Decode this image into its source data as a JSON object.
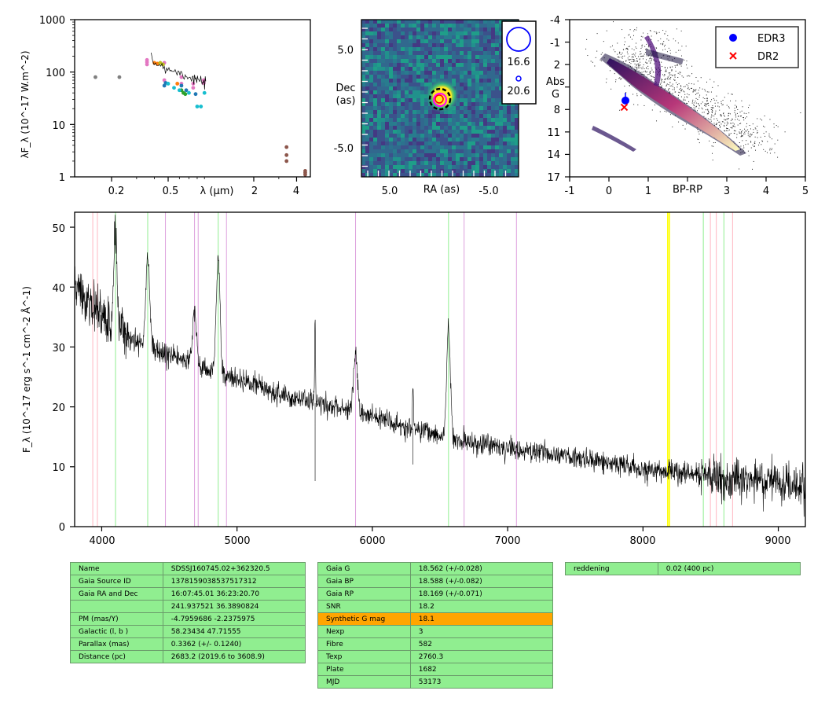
{
  "sed": {
    "ylabel": "λF_λ (10^-17 W.m^-2)",
    "xlabel": "λ (μm)",
    "ytick_labels": [
      "1000",
      "100",
      "10",
      "1"
    ],
    "xtick_labels": [
      "0.2",
      "0.5",
      "2",
      "4"
    ],
    "chart_data": {
      "type": "scatter",
      "x_scale": "log",
      "y_scale": "log",
      "xlim": [
        0.11,
        5.0
      ],
      "ylim": [
        1,
        1000
      ],
      "series": [
        {
          "color": "#7f7f7f",
          "x": [
            0.154,
            0.227
          ],
          "y": [
            80,
            80
          ]
        },
        {
          "color": "#e377c2",
          "x": [
            0.355,
            0.355,
            0.355,
            0.47,
            0.47,
            0.62,
            0.62,
            0.75,
            0.75,
            0.89,
            0.89
          ],
          "y": [
            170,
            155,
            140,
            150,
            70,
            80,
            60,
            60,
            50,
            70,
            62
          ]
        },
        {
          "color": "#ff7f0e",
          "x": [
            0.4,
            0.42,
            0.58
          ],
          "y": [
            150,
            145,
            60
          ]
        },
        {
          "color": "#bcbd22",
          "x": [
            0.44,
            0.46
          ],
          "y": [
            150,
            140
          ]
        },
        {
          "color": "#1f77b4",
          "x": [
            0.47,
            0.48,
            0.62,
            0.67,
            0.78
          ],
          "y": [
            55,
            62,
            55,
            45,
            38
          ]
        },
        {
          "color": "#2ca02c",
          "x": [
            0.62,
            0.64,
            0.66
          ],
          "y": [
            45,
            40,
            38
          ]
        },
        {
          "color": "#17becf",
          "x": [
            0.5,
            0.55,
            0.6,
            0.7,
            0.8,
            0.85,
            0.9
          ],
          "y": [
            60,
            50,
            45,
            40,
            22,
            22,
            40
          ]
        },
        {
          "color": "#8c564b",
          "x": [
            3.4,
            3.4,
            3.4,
            4.6,
            4.6,
            4.6
          ],
          "y": [
            3.7,
            2.6,
            2.0,
            1.3,
            1.2,
            1.1
          ]
        }
      ]
    }
  },
  "image": {
    "ylabel_1": "Dec",
    "ylabel_2": "(as)",
    "xlabel": "RA (as)",
    "xtick_labels": [
      "5.0",
      "-5.0"
    ],
    "ytick_labels": [
      "5.0",
      "-5.0"
    ],
    "legend_mag_1": "16.6",
    "legend_mag_2": "20.6"
  },
  "hrd": {
    "xlabel": "BP-RP",
    "ylabel_1": "Abs",
    "ylabel_2": "G",
    "xtick_labels": [
      "-1",
      "0",
      "1",
      "3",
      "4",
      "5"
    ],
    "ytick_labels": [
      "-4",
      "-1",
      "2",
      "5",
      "8",
      "11",
      "14",
      "17"
    ],
    "legend": [
      {
        "label": "EDR3",
        "color": "#0000ff",
        "marker": "circle"
      },
      {
        "label": "DR2",
        "color": "#ff0000",
        "marker": "x"
      }
    ],
    "chart_data": {
      "type": "scatter",
      "xlim": [
        -1,
        5
      ],
      "ylim": [
        17,
        -4
      ],
      "series": [
        {
          "name": "EDR3",
          "x": [
            0.42
          ],
          "y": [
            6.8
          ]
        },
        {
          "name": "DR2",
          "x": [
            0.39
          ],
          "y": [
            7.7
          ]
        }
      ]
    }
  },
  "spectrum": {
    "ylabel": "F_λ (10^-17 erg s^-1 cm^-2 Å^-1)",
    "ytick_labels": [
      "0",
      "10",
      "20",
      "30",
      "40",
      "50"
    ],
    "xtick_labels": [
      "4000",
      "5000",
      "6000",
      "7000",
      "8000",
      "9000"
    ],
    "chart_data": {
      "type": "line",
      "xlim": [
        3800,
        9200
      ],
      "ylim": [
        0,
        52.5
      ],
      "continuum": {
        "x": [
          3800,
          3900,
          4000,
          4200,
          4400,
          4600,
          4800,
          5000,
          5400,
          5800,
          6200,
          6600,
          7000,
          7500,
          8000,
          8500,
          9000,
          9200
        ],
        "y": [
          40.5,
          38,
          35,
          31.5,
          29.5,
          28,
          26,
          24.5,
          21.5,
          19.5,
          17,
          14.5,
          13,
          11.5,
          9.5,
          8.5,
          7.3,
          7.0
        ]
      },
      "emission_lines": [
        {
          "x": 4102,
          "peak": 14
        },
        {
          "x": 4340,
          "peak": 15
        },
        {
          "x": 4686,
          "peak": 9
        },
        {
          "x": 4861,
          "peak": 19
        },
        {
          "x": 5577,
          "peak": 15
        },
        {
          "x": 5876,
          "peak": 10
        },
        {
          "x": 6563,
          "peak": 18
        },
        {
          "x": 6300,
          "peak": 8
        }
      ],
      "absorption_spikes": [
        {
          "x": 5577,
          "depth": 13
        },
        {
          "x": 6300,
          "depth": 6
        }
      ],
      "vlines": [
        {
          "x": 3934,
          "color": "#ffb6c1"
        },
        {
          "x": 3968,
          "color": "#ffb6c1"
        },
        {
          "x": 4102,
          "color": "#90ee90"
        },
        {
          "x": 4340,
          "color": "#90ee90"
        },
        {
          "x": 4471,
          "color": "#dda0dd"
        },
        {
          "x": 4686,
          "color": "#dda0dd"
        },
        {
          "x": 4713,
          "color": "#dda0dd"
        },
        {
          "x": 4861,
          "color": "#90ee90"
        },
        {
          "x": 4922,
          "color": "#dda0dd"
        },
        {
          "x": 5876,
          "color": "#dda0dd"
        },
        {
          "x": 6563,
          "color": "#90ee90"
        },
        {
          "x": 6678,
          "color": "#dda0dd"
        },
        {
          "x": 7065,
          "color": "#dda0dd"
        },
        {
          "x": 8183,
          "color": "#ffff00"
        },
        {
          "x": 8195,
          "color": "#ffff00"
        },
        {
          "x": 8446,
          "color": "#90ee90"
        },
        {
          "x": 8498,
          "color": "#ffb6c1"
        },
        {
          "x": 8542,
          "color": "#ffb6c1"
        },
        {
          "x": 8598,
          "color": "#90ee90"
        },
        {
          "x": 8662,
          "color": "#ffb6c1"
        }
      ]
    }
  },
  "table_left": [
    {
      "k": "Name",
      "v": "SDSSJ160745.02+362320.5"
    },
    {
      "k": "Gaia Source ID",
      "v": "1378159038537517312"
    },
    {
      "k": "Gaia RA and Dec",
      "v": "16:07:45.01    36:23:20.70"
    },
    {
      "k": "",
      "v": "241.937521    36.3890824"
    },
    {
      "k": "PM (mas/Y)",
      "v": "-4.7959686    -2.2375975"
    },
    {
      "k": "Galactic (l, b )",
      "v": "58.23434    47.71555"
    },
    {
      "k": "Parallax (mas)",
      "v": "0.3362 (+/- 0.1240)"
    },
    {
      "k": "Distance (pc)",
      "v": "2683.2 (2019.6 to 3608.9)"
    }
  ],
  "table_mid": [
    {
      "k": "Gaia G",
      "v": "18.562 (+/-0.028)"
    },
    {
      "k": "Gaia BP",
      "v": "18.588 (+/-0.082)"
    },
    {
      "k": "Gaia RP",
      "v": "18.169 (+/-0.071)"
    },
    {
      "k": "SNR",
      "v": "18.2"
    },
    {
      "k": "Synthetic G mag",
      "v": "18.1",
      "highlight": "#ffa500"
    },
    {
      "k": "Nexp",
      "v": "3"
    },
    {
      "k": "Fibre",
      "v": "582"
    },
    {
      "k": "Texp",
      "v": "2760.3"
    },
    {
      "k": "Plate",
      "v": "1682"
    },
    {
      "k": "MJD",
      "v": "53173"
    }
  ],
  "table_right": [
    {
      "k": "reddening",
      "v": "0.02 (400 pc)"
    }
  ]
}
